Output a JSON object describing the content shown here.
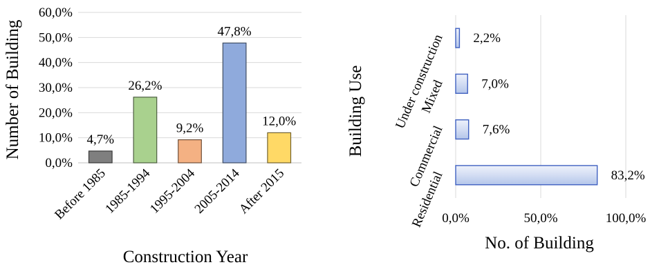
{
  "chart_data": [
    {
      "type": "bar",
      "title": "",
      "xlabel": "Construction Year",
      "ylabel": "Number of Building",
      "ylim": [
        0,
        60
      ],
      "y_ticks": [
        "0,0%",
        "10,0%",
        "20,0%",
        "30,0%",
        "40,0%",
        "50,0%",
        "60,0%"
      ],
      "grid": true,
      "categories": [
        "Before 1985",
        "1985-1994",
        "1995-2004",
        "2005-2014",
        "After 2015"
      ],
      "values": [
        4.7,
        26.2,
        9.2,
        47.8,
        12.0
      ],
      "data_labels": [
        "4,7%",
        "26,2%",
        "9,2%",
        "47,8%",
        "12,0%"
      ],
      "colors": [
        "#7f7f7f",
        "#a9d18e",
        "#f4b183",
        "#8faadc",
        "#ffd966"
      ]
    },
    {
      "type": "bar",
      "orientation": "horizontal",
      "title": "",
      "xlabel": "No. of Building",
      "ylabel": "Building Use",
      "xlim": [
        0,
        100
      ],
      "x_ticks": [
        "0,0%",
        "50,0%",
        "100,0%"
      ],
      "grid": true,
      "categories": [
        "Under construction",
        "Mixed",
        "Commercial",
        "Residential"
      ],
      "values": [
        2.2,
        7.0,
        7.6,
        83.2
      ],
      "data_labels": [
        "2,2%",
        "7,0%",
        "7,6%",
        "83,2%"
      ],
      "colors": [
        "#c5d3f0"
      ]
    }
  ]
}
